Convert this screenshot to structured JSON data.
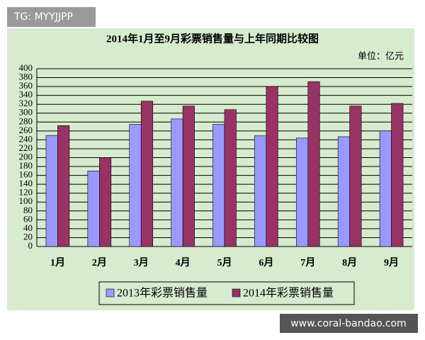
{
  "watermarks": {
    "top": "TG: MYYJJPP",
    "bottom": "www.coral-bandao.com"
  },
  "chart_data": {
    "type": "bar",
    "title": "2014年1月至9月彩票销售量与上年同期比较图",
    "unit": "单位：亿元",
    "categories": [
      "1月",
      "2月",
      "3月",
      "4月",
      "5月",
      "6月",
      "7月",
      "8月",
      "9月"
    ],
    "series": [
      {
        "name": "2013年彩票销售量",
        "color": "#9999ff",
        "values": [
          250,
          170,
          275,
          287,
          275,
          249,
          244,
          247,
          260
        ]
      },
      {
        "name": "2014年彩票销售量",
        "color": "#993366",
        "values": [
          272,
          200,
          327,
          316,
          308,
          360,
          371,
          316,
          322
        ]
      }
    ],
    "ylim": [
      0,
      400
    ],
    "yticks": [
      0,
      20,
      40,
      60,
      80,
      100,
      120,
      140,
      160,
      180,
      200,
      220,
      240,
      260,
      280,
      300,
      320,
      340,
      360,
      380,
      400
    ],
    "grid": true
  }
}
